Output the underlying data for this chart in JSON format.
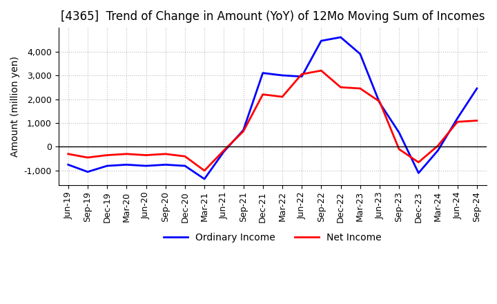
{
  "title": "[4365]  Trend of Change in Amount (YoY) of 12Mo Moving Sum of Incomes",
  "ylabel": "Amount (million yen)",
  "ylim": [
    -1600,
    5000
  ],
  "yticks": [
    -1000,
    0,
    1000,
    2000,
    3000,
    4000
  ],
  "x_labels": [
    "Jun-19",
    "Sep-19",
    "Dec-19",
    "Mar-20",
    "Jun-20",
    "Sep-20",
    "Dec-20",
    "Mar-21",
    "Jun-21",
    "Sep-21",
    "Dec-21",
    "Mar-22",
    "Jun-22",
    "Sep-22",
    "Dec-22",
    "Mar-23",
    "Jun-23",
    "Sep-23",
    "Dec-23",
    "Mar-24",
    "Jun-24",
    "Sep-24"
  ],
  "ordinary_income": [
    -750,
    -1050,
    -800,
    -750,
    -800,
    -750,
    -800,
    -1350,
    -200,
    700,
    3100,
    3000,
    2950,
    4450,
    4600,
    3900,
    1850,
    600,
    -1100,
    -150,
    1200,
    2450
  ],
  "net_income": [
    -300,
    -450,
    -350,
    -300,
    -350,
    -300,
    -400,
    -1000,
    -150,
    650,
    2200,
    2100,
    3050,
    3200,
    2500,
    2450,
    1900,
    -100,
    -650,
    50,
    1050,
    1100
  ],
  "ordinary_color": "#0000ff",
  "net_color": "#ff0000",
  "background_color": "#ffffff",
  "grid_color": "#bbbbbb",
  "title_fontsize": 12,
  "label_fontsize": 10,
  "tick_fontsize": 9,
  "legend_fontsize": 10
}
